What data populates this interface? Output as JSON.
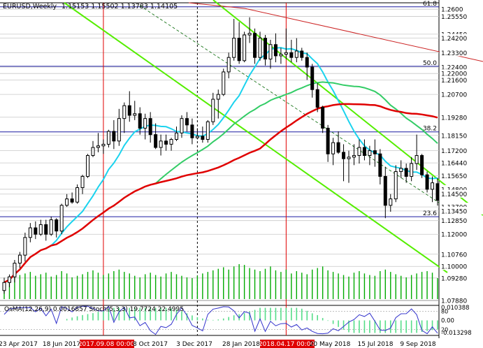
{
  "header": {
    "symbol": "EURUSD,Weekly",
    "ohlc": "1.15153 1.15502 1.13783 1.14105"
  },
  "indicator_header": "OsMA(12,26,9) 0.0016857  Stoch(5,3,3) 19.7724 22.4995",
  "colors": {
    "background": "#ffffff",
    "grid": "#c8c8c8",
    "candle": "#000000",
    "ma_red": "#e00000",
    "ma_green": "#33cc66",
    "ma_cyan": "#1ad3ee",
    "channel": "#55ee00",
    "resistance": "#cc2222",
    "fib_line": "#1a1aa0",
    "volume": "#00aa00",
    "date_marker_bg": "#e00000"
  },
  "chart_data": {
    "type": "candlestick",
    "title": "EURUSD,Weekly",
    "ylim": [
      1.0788,
      1.264
    ],
    "price_labels": [
      "1.2600",
      "1.25550",
      "1.24450",
      "1.24200",
      "1.23300",
      "1.22400",
      "1.22000",
      "1.21600",
      "1.20700",
      "1.19280",
      "1.18150",
      "1.17200",
      "1.16440",
      "1.15650",
      "1.14800",
      "1.14500",
      "1.13700",
      "1.13450",
      "1.12850",
      "1.12000",
      "1.10760",
      "1.10000",
      "1.09280",
      "1.07880"
    ],
    "fib_labels": [
      {
        "label": "61.8",
        "price": 1.2615
      },
      {
        "label": "50.0",
        "price": 1.2245
      },
      {
        "label": "38.2",
        "price": 1.1837
      },
      {
        "label": "23.6",
        "price": 1.1309
      }
    ],
    "x_tick_labels": [
      "23 Apr 2017",
      "18 Jun 2017",
      "2017.09.08 00:00",
      "8 Oct 2017",
      "3 Dec 2017",
      "28 Jan 2018",
      "2018.04.17 00:00",
      "20 May 2018",
      "15 Jul 2018",
      "9 Sep 2018"
    ],
    "highlighted_dates": [
      "2017.09.08 00:00",
      "2018.04.17 00:00"
    ],
    "candles": [
      [
        1.085,
        1.093,
        1.083,
        1.09
      ],
      [
        1.09,
        1.095,
        1.087,
        1.0935
      ],
      [
        1.0935,
        1.104,
        1.09,
        1.102
      ],
      [
        1.102,
        1.109,
        1.099,
        1.107
      ],
      [
        1.107,
        1.121,
        1.103,
        1.118
      ],
      [
        1.118,
        1.127,
        1.115,
        1.124
      ],
      [
        1.124,
        1.128,
        1.117,
        1.12
      ],
      [
        1.12,
        1.129,
        1.119,
        1.126
      ],
      [
        1.126,
        1.129,
        1.116,
        1.12
      ],
      [
        1.12,
        1.131,
        1.119,
        1.129
      ],
      [
        1.129,
        1.13,
        1.118,
        1.122
      ],
      [
        1.122,
        1.139,
        1.12,
        1.138
      ],
      [
        1.138,
        1.145,
        1.137,
        1.142
      ],
      [
        1.142,
        1.146,
        1.139,
        1.14
      ],
      [
        1.14,
        1.151,
        1.139,
        1.149
      ],
      [
        1.149,
        1.157,
        1.145,
        1.156
      ],
      [
        1.156,
        1.17,
        1.155,
        1.169
      ],
      [
        1.169,
        1.178,
        1.168,
        1.174
      ],
      [
        1.174,
        1.183,
        1.171,
        1.175
      ],
      [
        1.175,
        1.179,
        1.17,
        1.176
      ],
      [
        1.176,
        1.185,
        1.174,
        1.184
      ],
      [
        1.184,
        1.191,
        1.173,
        1.178
      ],
      [
        1.178,
        1.198,
        1.175,
        1.192
      ],
      [
        1.192,
        1.202,
        1.183,
        1.2
      ],
      [
        1.2,
        1.209,
        1.19,
        1.194
      ],
      [
        1.194,
        1.203,
        1.191,
        1.195
      ],
      [
        1.195,
        1.199,
        1.182,
        1.186
      ],
      [
        1.186,
        1.195,
        1.179,
        1.192
      ],
      [
        1.192,
        1.196,
        1.177,
        1.182
      ],
      [
        1.182,
        1.189,
        1.173,
        1.174
      ],
      [
        1.174,
        1.182,
        1.169,
        1.178
      ],
      [
        1.178,
        1.182,
        1.172,
        1.176
      ],
      [
        1.176,
        1.18,
        1.172,
        1.179
      ],
      [
        1.179,
        1.187,
        1.178,
        1.183
      ],
      [
        1.183,
        1.194,
        1.18,
        1.192
      ],
      [
        1.192,
        1.196,
        1.184,
        1.188
      ],
      [
        1.188,
        1.192,
        1.176,
        1.18
      ],
      [
        1.18,
        1.186,
        1.179,
        1.181
      ],
      [
        1.181,
        1.187,
        1.177,
        1.179
      ],
      [
        1.179,
        1.191,
        1.177,
        1.19
      ],
      [
        1.19,
        1.208,
        1.188,
        1.204
      ],
      [
        1.204,
        1.21,
        1.192,
        1.207
      ],
      [
        1.207,
        1.223,
        1.206,
        1.221
      ],
      [
        1.221,
        1.233,
        1.217,
        1.23
      ],
      [
        1.23,
        1.254,
        1.228,
        1.242
      ],
      [
        1.242,
        1.252,
        1.226,
        1.228
      ],
      [
        1.228,
        1.246,
        1.227,
        1.244
      ],
      [
        1.244,
        1.255,
        1.239,
        1.245
      ],
      [
        1.245,
        1.248,
        1.226,
        1.23
      ],
      [
        1.23,
        1.246,
        1.228,
        1.242
      ],
      [
        1.242,
        1.244,
        1.225,
        1.229
      ],
      [
        1.229,
        1.241,
        1.223,
        1.238
      ],
      [
        1.238,
        1.245,
        1.227,
        1.231
      ],
      [
        1.231,
        1.236,
        1.226,
        1.232
      ],
      [
        1.232,
        1.248,
        1.229,
        1.233
      ],
      [
        1.233,
        1.241,
        1.227,
        1.23
      ],
      [
        1.23,
        1.242,
        1.227,
        1.234
      ],
      [
        1.234,
        1.236,
        1.228,
        1.23
      ],
      [
        1.23,
        1.233,
        1.216,
        1.224
      ],
      [
        1.224,
        1.226,
        1.205,
        1.21
      ],
      [
        1.21,
        1.214,
        1.196,
        1.199
      ],
      [
        1.199,
        1.2,
        1.183,
        1.186
      ],
      [
        1.186,
        1.188,
        1.165,
        1.17
      ],
      [
        1.17,
        1.18,
        1.163,
        1.177
      ],
      [
        1.177,
        1.184,
        1.17,
        1.171
      ],
      [
        1.171,
        1.176,
        1.153,
        1.167
      ],
      [
        1.167,
        1.172,
        1.152,
        1.168
      ],
      [
        1.168,
        1.176,
        1.163,
        1.169
      ],
      [
        1.169,
        1.179,
        1.164,
        1.174
      ],
      [
        1.174,
        1.179,
        1.166,
        1.169
      ],
      [
        1.169,
        1.175,
        1.163,
        1.172
      ],
      [
        1.172,
        1.179,
        1.162,
        1.17
      ],
      [
        1.17,
        1.173,
        1.151,
        1.156
      ],
      [
        1.156,
        1.162,
        1.13,
        1.138
      ],
      [
        1.138,
        1.145,
        1.134,
        1.142
      ],
      [
        1.142,
        1.163,
        1.14,
        1.159
      ],
      [
        1.159,
        1.166,
        1.155,
        1.161
      ],
      [
        1.161,
        1.164,
        1.152,
        1.156
      ],
      [
        1.156,
        1.168,
        1.153,
        1.164
      ],
      [
        1.164,
        1.182,
        1.16,
        1.169
      ],
      [
        1.169,
        1.17,
        1.155,
        1.157
      ],
      [
        1.157,
        1.159,
        1.146,
        1.148
      ],
      [
        1.148,
        1.156,
        1.14,
        1.152
      ],
      [
        1.1515,
        1.155,
        1.1378,
        1.1411
      ]
    ],
    "volume": [
      22,
      24,
      28,
      31,
      33,
      35,
      30,
      32,
      34,
      29,
      31,
      36,
      33,
      28,
      30,
      32,
      35,
      37,
      34,
      31,
      33,
      36,
      38,
      35,
      33,
      30,
      28,
      32,
      34,
      31,
      29,
      33,
      35,
      32,
      30,
      28,
      27,
      30,
      33,
      35,
      37,
      39,
      41,
      38,
      42,
      45,
      44,
      40,
      38,
      36,
      39,
      42,
      37,
      35,
      38,
      33,
      36,
      34,
      32,
      38,
      40,
      42,
      37,
      35,
      33,
      31,
      29,
      34,
      36,
      33,
      31,
      30,
      36,
      38,
      35,
      32,
      30,
      28,
      31,
      33,
      35,
      36,
      34,
      27
    ],
    "indicator_scale": [
      "0.010388",
      "0.00",
      "-0.013298"
    ],
    "indicator_levels": [
      "80",
      "20"
    ]
  }
}
